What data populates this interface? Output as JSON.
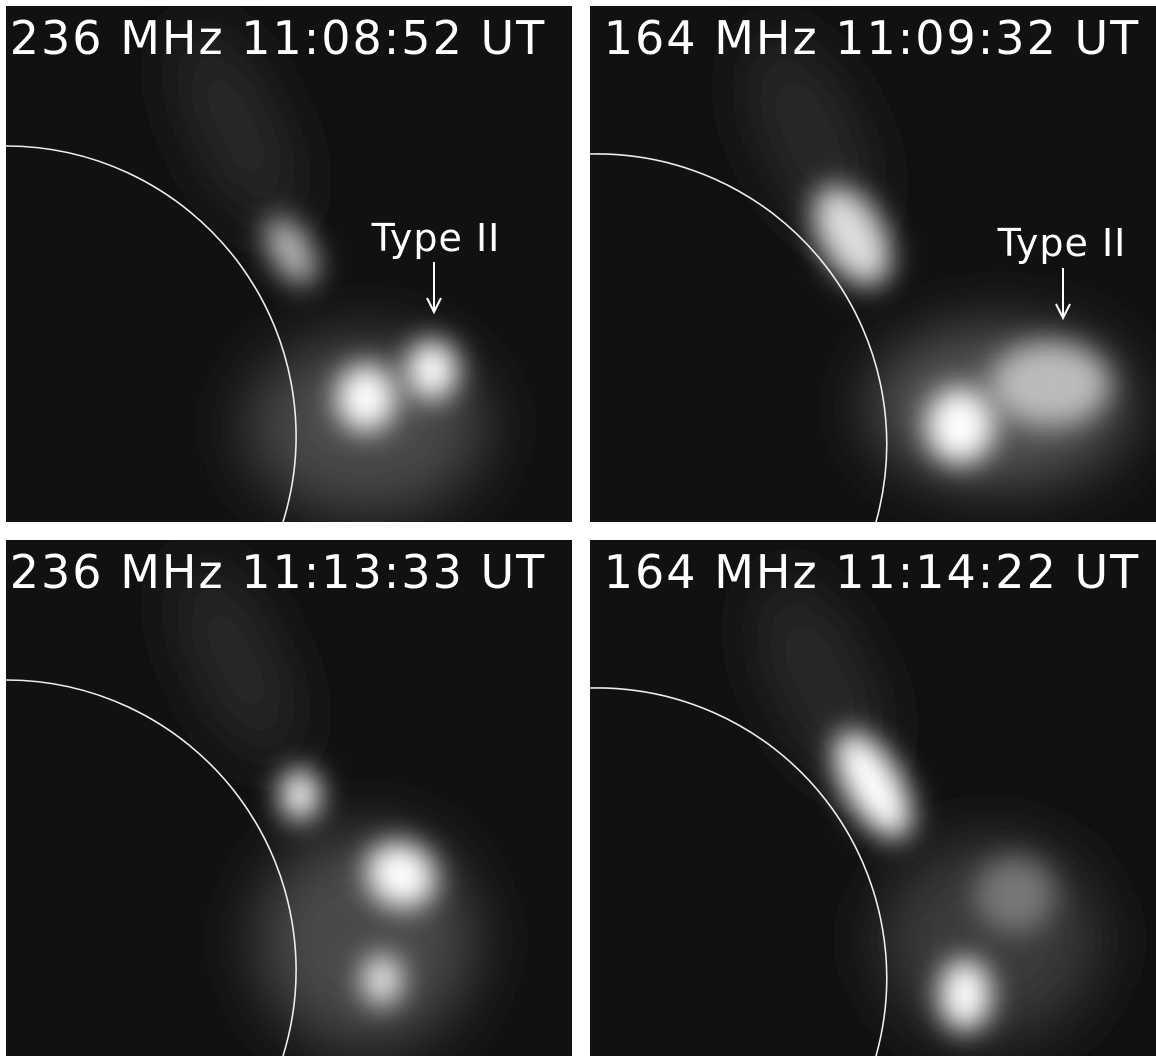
{
  "panels": [
    {
      "label": "236 MHz 11:08:52 UT",
      "annotation": "Type II"
    },
    {
      "label": "164 MHz 11:09:32 UT",
      "annotation": "Type II"
    },
    {
      "label": "236 MHz 11:13:33 UT"
    },
    {
      "label": "164 MHz 11:14:22 UT"
    }
  ]
}
